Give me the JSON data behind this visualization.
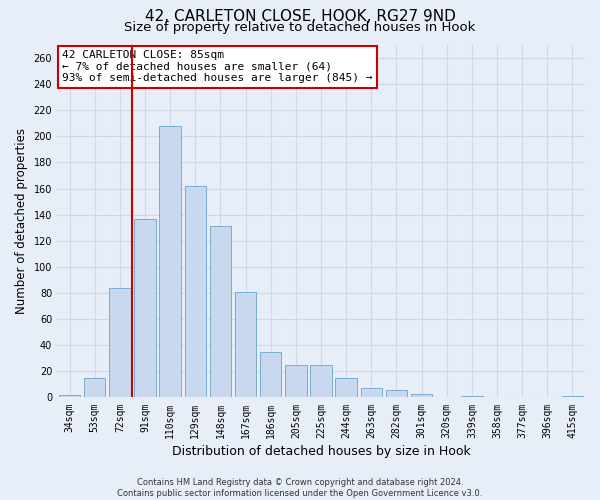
{
  "title1": "42, CARLETON CLOSE, HOOK, RG27 9ND",
  "title2": "Size of property relative to detached houses in Hook",
  "xlabel": "Distribution of detached houses by size in Hook",
  "ylabel": "Number of detached properties",
  "bar_labels": [
    "34sqm",
    "53sqm",
    "72sqm",
    "91sqm",
    "110sqm",
    "129sqm",
    "148sqm",
    "167sqm",
    "186sqm",
    "205sqm",
    "225sqm",
    "244sqm",
    "263sqm",
    "282sqm",
    "301sqm",
    "320sqm",
    "339sqm",
    "358sqm",
    "377sqm",
    "396sqm",
    "415sqm"
  ],
  "bar_values": [
    2,
    15,
    84,
    137,
    208,
    162,
    131,
    81,
    35,
    25,
    25,
    15,
    7,
    6,
    3,
    0,
    1,
    0,
    0,
    0,
    1
  ],
  "bar_color": "#c8d8ee",
  "bar_edge_color": "#7aadd4",
  "vline_pos": 2.5,
  "vline_color": "#cc0000",
  "annotation_line1": "42 CARLETON CLOSE: 85sqm",
  "annotation_line2": "← 7% of detached houses are smaller (64)",
  "annotation_line3": "93% of semi-detached houses are larger (845) →",
  "annotation_box_facecolor": "#ffffff",
  "annotation_box_edgecolor": "#cc0000",
  "ylim": [
    0,
    270
  ],
  "yticks": [
    0,
    20,
    40,
    60,
    80,
    100,
    120,
    140,
    160,
    180,
    200,
    220,
    240,
    260
  ],
  "footer_line1": "Contains HM Land Registry data © Crown copyright and database right 2024.",
  "footer_line2": "Contains public sector information licensed under the Open Government Licence v3.0.",
  "bg_color": "#e8eef8",
  "plot_bg_color": "#e8eef8",
  "grid_color": "#d0d8e8",
  "title1_fontsize": 11,
  "title2_fontsize": 9.5,
  "tick_fontsize": 7,
  "ylabel_fontsize": 8.5,
  "xlabel_fontsize": 9,
  "annotation_fontsize": 8,
  "footer_fontsize": 6
}
